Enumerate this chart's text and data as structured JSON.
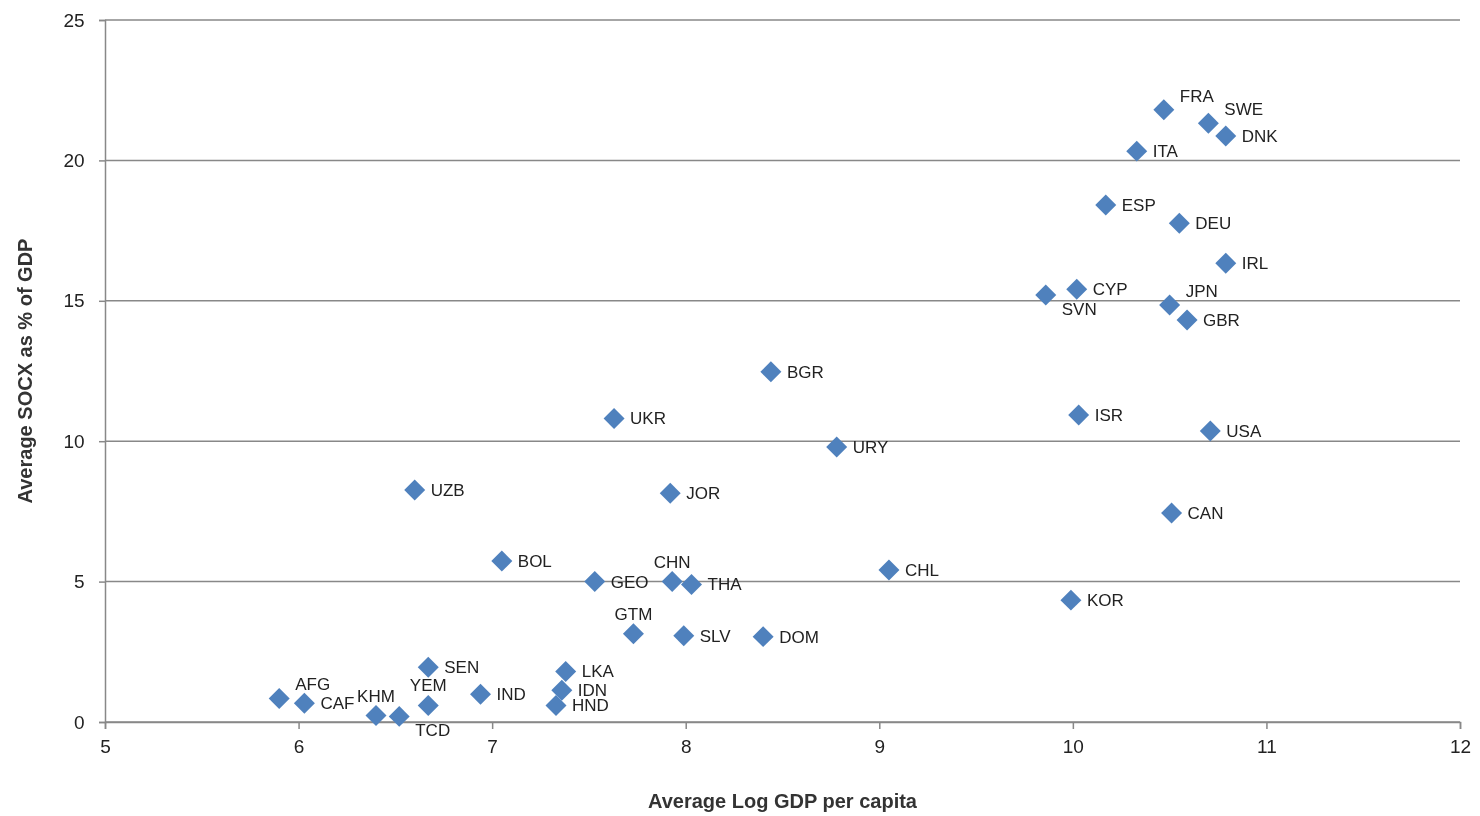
{
  "chart_data": {
    "type": "scatter",
    "xlabel": "Average Log GDP per capita",
    "ylabel": "Average SOCX as % of GDP",
    "xlim": [
      5,
      12
    ],
    "xticks": [
      5,
      6,
      7,
      8,
      9,
      10,
      11,
      12
    ],
    "ylim": [
      0,
      25
    ],
    "yticks": [
      0,
      5,
      10,
      15,
      20,
      25
    ],
    "grid": "y",
    "marker": "diamond",
    "series": [
      {
        "color": "#4f81bd",
        "x": [
          5.9,
          6.03,
          6.4,
          6.52,
          6.67,
          6.67,
          6.94,
          7.38,
          7.36,
          7.33,
          7.05,
          7.53,
          7.93,
          8.03,
          7.73,
          7.99,
          8.4,
          6.6,
          7.63,
          7.92,
          8.44,
          8.78,
          10.47,
          10.7,
          10.79,
          10.33,
          10.17,
          10.55,
          10.79,
          10.02,
          9.86,
          10.5,
          10.59,
          10.03,
          10.71,
          10.51,
          9.05,
          9.99
        ],
        "values": [
          0.84,
          0.67,
          0.23,
          0.2,
          0.59,
          1.95,
          0.99,
          1.8,
          1.13,
          0.59,
          5.73,
          5.0,
          5.0,
          4.9,
          3.14,
          3.07,
          3.04,
          8.26,
          10.81,
          8.15,
          12.47,
          9.79,
          21.8,
          21.32,
          20.87,
          20.33,
          18.41,
          17.76,
          16.34,
          15.41,
          15.21,
          14.85,
          14.32,
          10.93,
          10.36,
          7.44,
          5.41,
          4.34
        ],
        "value_labels": [
          "AFG",
          "CAF",
          "KHM",
          "TCD",
          "YEM",
          "SEN",
          "IND",
          "LKA",
          "IDN",
          "HND",
          "BOL",
          "GEO",
          "CHN",
          "THA",
          "GTM",
          "SLV",
          "DOM",
          "UZB",
          "UKR",
          "JOR",
          "BGR",
          "URY",
          "FRA",
          "SWE",
          "DNK",
          "ITA",
          "ESP",
          "DEU",
          "IRL",
          "CYP",
          "SVN",
          "JPN",
          "GBR",
          "ISR",
          "USA",
          "CAN",
          "CHL",
          "KOR"
        ]
      }
    ]
  }
}
